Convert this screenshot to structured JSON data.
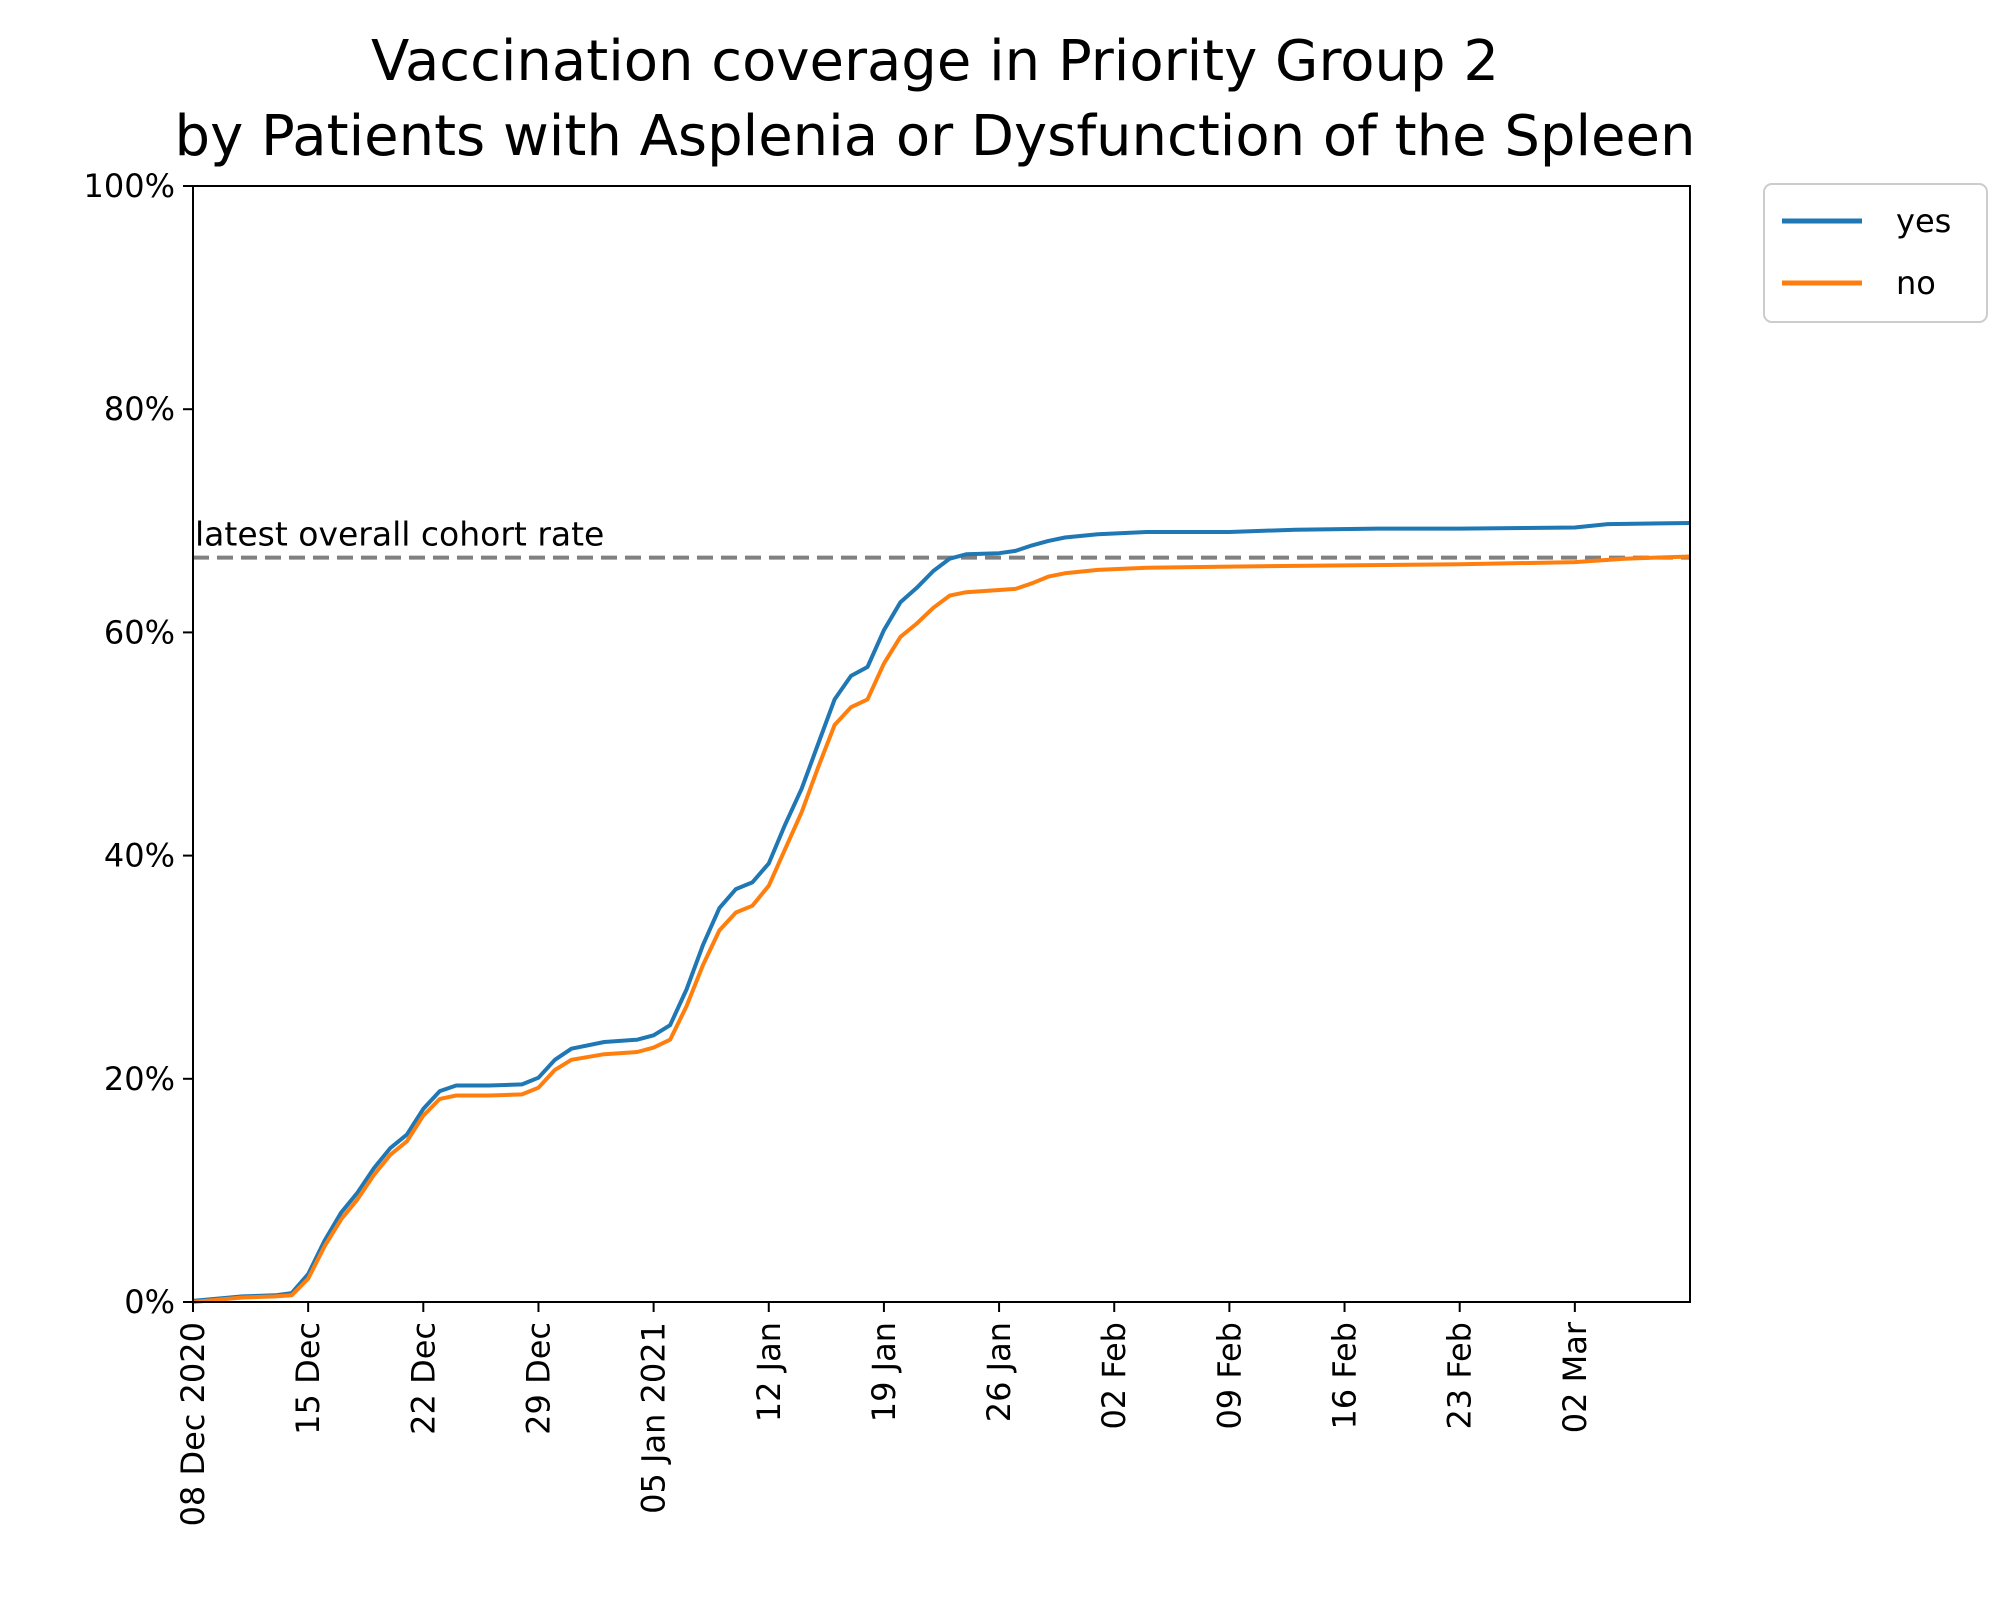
{
  "chart_data": {
    "type": "line",
    "title": "Vaccination coverage in Priority Group 2",
    "subtitle": "by Patients with Asplenia or Dysfunction of the Spleen",
    "xlabel": "",
    "ylabel": "",
    "x_start": "2020-12-08",
    "x_end": "2021-03-09",
    "ylim": [
      0,
      100
    ],
    "grid": false,
    "legend_position": "outside-top-right",
    "x_ticks": [
      {
        "date": "2020-12-08",
        "label": "08 Dec 2020"
      },
      {
        "date": "2020-12-15",
        "label": "15 Dec"
      },
      {
        "date": "2020-12-22",
        "label": "22 Dec"
      },
      {
        "date": "2020-12-29",
        "label": "29 Dec"
      },
      {
        "date": "2021-01-05",
        "label": "05 Jan 2021"
      },
      {
        "date": "2021-01-12",
        "label": "12 Jan"
      },
      {
        "date": "2021-01-19",
        "label": "19 Jan"
      },
      {
        "date": "2021-01-26",
        "label": "26 Jan"
      },
      {
        "date": "2021-02-02",
        "label": "02 Feb"
      },
      {
        "date": "2021-02-09",
        "label": "09 Feb"
      },
      {
        "date": "2021-02-16",
        "label": "16 Feb"
      },
      {
        "date": "2021-02-23",
        "label": "23 Feb"
      },
      {
        "date": "2021-03-02",
        "label": "02 Mar"
      }
    ],
    "y_ticks": [
      {
        "value": 0,
        "label": "0%"
      },
      {
        "value": 20,
        "label": "20%"
      },
      {
        "value": 40,
        "label": "40%"
      },
      {
        "value": 60,
        "label": "60%"
      },
      {
        "value": 80,
        "label": "80%"
      },
      {
        "value": 100,
        "label": "100%"
      }
    ],
    "reference_line": {
      "value": 66.7,
      "label": "latest overall cohort rate",
      "color": "#808080"
    },
    "series": [
      {
        "name": "yes",
        "color": "#1f77b4",
        "points": [
          [
            "2020-12-08",
            0.1
          ],
          [
            "2020-12-11",
            0.5
          ],
          [
            "2020-12-13",
            0.6
          ],
          [
            "2020-12-14",
            0.8
          ],
          [
            "2020-12-15",
            2.5
          ],
          [
            "2020-12-16",
            5.5
          ],
          [
            "2020-12-17",
            8.0
          ],
          [
            "2020-12-18",
            9.8
          ],
          [
            "2020-12-19",
            12.0
          ],
          [
            "2020-12-20",
            13.8
          ],
          [
            "2020-12-21",
            15.0
          ],
          [
            "2020-12-22",
            17.3
          ],
          [
            "2020-12-23",
            18.9
          ],
          [
            "2020-12-24",
            19.4
          ],
          [
            "2020-12-26",
            19.4
          ],
          [
            "2020-12-28",
            19.5
          ],
          [
            "2020-12-29",
            20.1
          ],
          [
            "2020-12-30",
            21.7
          ],
          [
            "2020-12-31",
            22.7
          ],
          [
            "2021-01-02",
            23.3
          ],
          [
            "2021-01-04",
            23.5
          ],
          [
            "2021-01-05",
            23.9
          ],
          [
            "2021-01-06",
            24.8
          ],
          [
            "2021-01-07",
            28.0
          ],
          [
            "2021-01-08",
            32.0
          ],
          [
            "2021-01-09",
            35.3
          ],
          [
            "2021-01-10",
            37.0
          ],
          [
            "2021-01-11",
            37.6
          ],
          [
            "2021-01-12",
            39.3
          ],
          [
            "2021-01-13",
            42.8
          ],
          [
            "2021-01-14",
            46.0
          ],
          [
            "2021-01-15",
            50.0
          ],
          [
            "2021-01-16",
            54.0
          ],
          [
            "2021-01-17",
            56.1
          ],
          [
            "2021-01-18",
            56.9
          ],
          [
            "2021-01-19",
            60.2
          ],
          [
            "2021-01-20",
            62.7
          ],
          [
            "2021-01-21",
            64.0
          ],
          [
            "2021-01-22",
            65.5
          ],
          [
            "2021-01-23",
            66.6
          ],
          [
            "2021-01-24",
            67.0
          ],
          [
            "2021-01-26",
            67.1
          ],
          [
            "2021-01-27",
            67.3
          ],
          [
            "2021-01-28",
            67.8
          ],
          [
            "2021-01-29",
            68.2
          ],
          [
            "2021-01-30",
            68.5
          ],
          [
            "2021-02-01",
            68.8
          ],
          [
            "2021-02-04",
            69.0
          ],
          [
            "2021-02-09",
            69.0
          ],
          [
            "2021-02-13",
            69.2
          ],
          [
            "2021-02-18",
            69.3
          ],
          [
            "2021-02-23",
            69.3
          ],
          [
            "2021-03-02",
            69.4
          ],
          [
            "2021-03-04",
            69.7
          ],
          [
            "2021-03-09",
            69.8
          ]
        ]
      },
      {
        "name": "no",
        "color": "#ff7f0e",
        "points": [
          [
            "2020-12-08",
            0.0
          ],
          [
            "2020-12-11",
            0.4
          ],
          [
            "2020-12-13",
            0.5
          ],
          [
            "2020-12-14",
            0.6
          ],
          [
            "2020-12-15",
            2.1
          ],
          [
            "2020-12-16",
            5.0
          ],
          [
            "2020-12-17",
            7.4
          ],
          [
            "2020-12-18",
            9.2
          ],
          [
            "2020-12-19",
            11.4
          ],
          [
            "2020-12-20",
            13.2
          ],
          [
            "2020-12-21",
            14.4
          ],
          [
            "2020-12-22",
            16.7
          ],
          [
            "2020-12-23",
            18.2
          ],
          [
            "2020-12-24",
            18.5
          ],
          [
            "2020-12-26",
            18.5
          ],
          [
            "2020-12-28",
            18.6
          ],
          [
            "2020-12-29",
            19.2
          ],
          [
            "2020-12-30",
            20.8
          ],
          [
            "2020-12-31",
            21.7
          ],
          [
            "2021-01-02",
            22.2
          ],
          [
            "2021-01-04",
            22.4
          ],
          [
            "2021-01-05",
            22.8
          ],
          [
            "2021-01-06",
            23.5
          ],
          [
            "2021-01-07",
            26.5
          ],
          [
            "2021-01-08",
            30.2
          ],
          [
            "2021-01-09",
            33.3
          ],
          [
            "2021-01-10",
            34.9
          ],
          [
            "2021-01-11",
            35.5
          ],
          [
            "2021-01-12",
            37.3
          ],
          [
            "2021-01-13",
            40.6
          ],
          [
            "2021-01-14",
            43.9
          ],
          [
            "2021-01-15",
            47.9
          ],
          [
            "2021-01-16",
            51.7
          ],
          [
            "2021-01-17",
            53.3
          ],
          [
            "2021-01-18",
            54.0
          ],
          [
            "2021-01-19",
            57.2
          ],
          [
            "2021-01-20",
            59.6
          ],
          [
            "2021-01-21",
            60.8
          ],
          [
            "2021-01-22",
            62.2
          ],
          [
            "2021-01-23",
            63.3
          ],
          [
            "2021-01-24",
            63.6
          ],
          [
            "2021-01-26",
            63.8
          ],
          [
            "2021-01-27",
            63.9
          ],
          [
            "2021-01-28",
            64.4
          ],
          [
            "2021-01-29",
            65.0
          ],
          [
            "2021-01-30",
            65.3
          ],
          [
            "2021-02-01",
            65.6
          ],
          [
            "2021-02-04",
            65.8
          ],
          [
            "2021-02-09",
            65.9
          ],
          [
            "2021-02-16",
            66.0
          ],
          [
            "2021-02-23",
            66.1
          ],
          [
            "2021-03-02",
            66.3
          ],
          [
            "2021-03-05",
            66.6
          ],
          [
            "2021-03-09",
            66.8
          ]
        ]
      }
    ]
  }
}
